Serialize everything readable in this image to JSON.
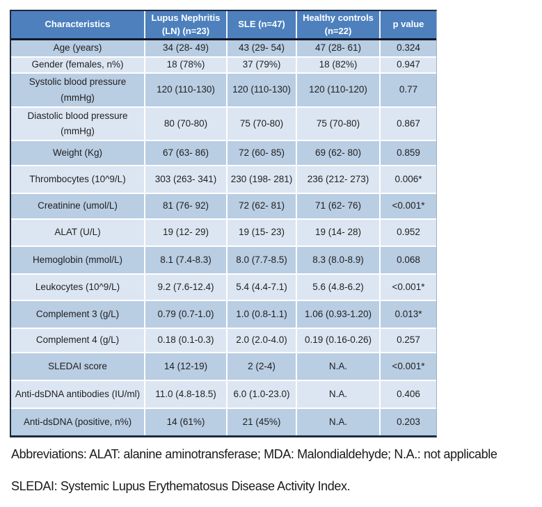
{
  "table": {
    "columns": [
      "Characteristics",
      "Lupus Nephritis\n(LN) (n=23)",
      "SLE (n=47)",
      "Healthy controls\n(n=22)",
      "p value"
    ],
    "rows": [
      [
        "Age (years)",
        "34 (28- 49)",
        "43 (29- 54)",
        "47 (28- 61)",
        "0.324"
      ],
      [
        "Gender (females, n%)",
        "18 (78%)",
        "37 (79%)",
        "18 (82%)",
        "0.947"
      ],
      [
        "Systolic blood pressure\n(mmHg)",
        "120 (110-130)",
        "120 (110-130)",
        "120 (110-120)",
        "0.77"
      ],
      [
        "Diastolic blood pressure\n(mmHg)",
        "80 (70-80)",
        "75 (70-80)",
        "75 (70-80)",
        "0.867"
      ],
      [
        "Weight (Kg)",
        "67 (63- 86)",
        "72 (60- 85)",
        "69 (62- 80)",
        "0.859"
      ],
      [
        "Thrombocytes (10^9/L)",
        "303 (263- 341)",
        "230 (198- 281)",
        "236 (212- 273)",
        "0.006*"
      ],
      [
        "Creatinine (umol/L)",
        "81 (76- 92)",
        "72 (62- 81)",
        "71 (62- 76)",
        "<0.001*"
      ],
      [
        "ALAT (U/L)",
        "19 (12- 29)",
        "19 (15- 23)",
        "19 (14- 28)",
        "0.952"
      ],
      [
        "Hemoglobin (mmol/L)",
        "8.1 (7.4-8.3)",
        "8.0 (7.7-8.5)",
        "8.3 (8.0-8.9)",
        "0.068"
      ],
      [
        "Leukocytes (10^9/L)",
        "9.2 (7.6-12.4)",
        "5.4 (4.4-7.1)",
        "5.6 (4.8-6.2)",
        "<0.001*"
      ],
      [
        "Complement 3 (g/L)",
        "0.79 (0.7-1.0)",
        "1.0 (0.8-1.1)",
        "1.06 (0.93-1.20)",
        "0.013*"
      ],
      [
        "Complement 4 (g/L)",
        "0.18 (0.1-0.3)",
        "2.0 (2.0-4.0)",
        "0.19 (0.16-0.26)",
        "0.257"
      ],
      [
        "SLEDAI score",
        "14 (12-19)",
        "2 (2-4)",
        "N.A.",
        "<0.001*"
      ],
      [
        "Anti-dsDNA antibodies (IU/ml)",
        "11.0 (4.8-18.5)",
        "6.0 (1.0-23.0)",
        "N.A.",
        "0.406"
      ],
      [
        "Anti-dsDNA (positive, n%)",
        "14 (61%)",
        "21 (45%)",
        "N.A.",
        "0.203"
      ]
    ]
  },
  "footnotes": {
    "line1": "Abbreviations: ALAT: alanine aminotransferase; MDA: Malondialdehyde; N.A.: not applicable",
    "line2": "SLEDAI: Systemic Lupus Erythematosus Disease Activity Index."
  },
  "colors": {
    "header_blue": "#4d80bd",
    "band_dark": "#b9cde3",
    "band_light": "#dce6f2",
    "border_dark": "#1b2940",
    "text_dark": "#1f1f1f"
  }
}
